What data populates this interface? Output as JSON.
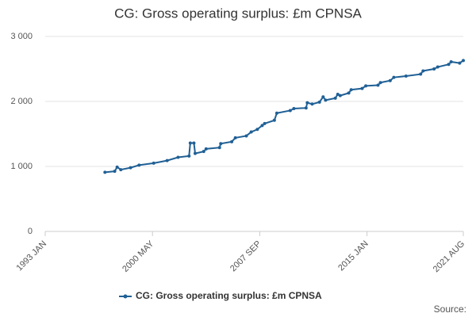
{
  "chart_data": {
    "type": "line",
    "title": "CG: Gross operating surplus: £m CPNSA",
    "x": [
      "1997 FEB",
      "1997 OCT",
      "1997 DEC",
      "1998 MAR",
      "1998 NOV",
      "1999 JUN",
      "2000 JUN",
      "2001 MAY",
      "2002 FEB",
      "2002 NOV",
      "2002 DEC",
      "2003 MAR",
      "2003 APR",
      "2003 NOV",
      "2004 JAN",
      "2004 DEC",
      "2005 JAN",
      "2005 OCT",
      "2006 JAN",
      "2006 OCT",
      "2007 FEB",
      "2007 JUL",
      "2007 NOV",
      "2008 JAN",
      "2008 SEP",
      "2008 NOV",
      "2009 OCT",
      "2010 JAN",
      "2010 NOV",
      "2010 DEC",
      "2011 APR",
      "2011 OCT",
      "2012 JAN",
      "2012 MAR",
      "2012 NOV",
      "2013 JAN",
      "2013 MAR",
      "2013 OCT",
      "2013 DEC",
      "2014 SEP",
      "2014 DEC",
      "2015 OCT",
      "2015 DEC",
      "2016 AUG",
      "2016 NOV",
      "2017 SEP",
      "2018 SEP",
      "2018 NOV",
      "2019 AUG",
      "2019 NOV",
      "2020 AUG",
      "2020 OCT",
      "2021 MAY",
      "2021 AUG"
    ],
    "series": [
      {
        "name": "CG: Gross operating surplus: £m CPNSA",
        "color": "#206095",
        "values": [
          910,
          925,
          990,
          950,
          980,
          1020,
          1050,
          1090,
          1140,
          1160,
          1360,
          1360,
          1200,
          1230,
          1270,
          1290,
          1350,
          1380,
          1440,
          1470,
          1530,
          1570,
          1630,
          1660,
          1710,
          1820,
          1860,
          1890,
          1900,
          1980,
          1960,
          1990,
          2070,
          2020,
          2050,
          2110,
          2090,
          2130,
          2180,
          2200,
          2240,
          2250,
          2290,
          2320,
          2370,
          2390,
          2420,
          2470,
          2500,
          2530,
          2570,
          2610,
          2590,
          2630
        ]
      }
    ],
    "xlim": [
      "1993 JAN",
      "2021 AUG"
    ],
    "xticks": [
      "1993 JAN",
      "2000 MAY",
      "2007 SEP",
      "2015 JAN",
      "2021 AUG"
    ],
    "ylim": [
      0,
      3000
    ],
    "yticks": [
      0,
      {
        "value": 1000,
        "label": "1 000"
      },
      {
        "value": 2000,
        "label": "2 000"
      },
      {
        "value": 3000,
        "label": "3 000"
      }
    ],
    "grid": true,
    "source": "Source:"
  }
}
